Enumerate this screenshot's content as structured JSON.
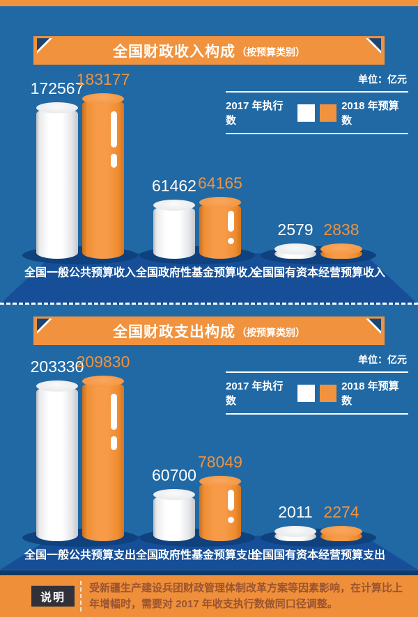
{
  "colors": {
    "background": "#2069a5",
    "floor": "#164f97",
    "shadow": "#0d3f7a",
    "accent_orange": "#f0923e",
    "value_2018_text": "#ee9342",
    "banner_corner_navy": "#1d4570",
    "note_badge_bg": "#31313a",
    "note_text": "#9b5430"
  },
  "sections": [
    {
      "title": "全国财政收入构成",
      "title_suffix": "（按预算类别）",
      "unit": "单位：亿元",
      "legend_left": "2017 年执行数",
      "legend_right": "2018 年预算数",
      "groups": [
        {
          "label": "全国一般公共预算收入",
          "v2017": "172567",
          "v2018": "183177"
        },
        {
          "label": "全国政府性基金预算收入",
          "v2017": "61462",
          "v2018": "64165"
        },
        {
          "label": "全国国有资本经营预算收入",
          "v2017": "2579",
          "v2018": "2838"
        }
      ]
    },
    {
      "title": "全国财政支出构成",
      "title_suffix": "（按预算类别）",
      "unit": "单位：亿元",
      "legend_left": "2017 年执行数",
      "legend_right": "2018 年预算数",
      "groups": [
        {
          "label": "全国一般公共预算支出",
          "v2017": "203330",
          "v2018": "209830"
        },
        {
          "label": "全国政府性基金预算支出",
          "v2017": "60700",
          "v2018": "78049"
        },
        {
          "label": "全国国有资本经营预算支出",
          "v2017": "2011",
          "v2018": "2274"
        }
      ]
    }
  ],
  "note": {
    "badge": "说明",
    "text": "受新疆生产建设兵团财政管理体制改革方案等因素影响，在计算比上年增幅时，需要对 2017 年收支执行数做同口径调整。"
  },
  "chart_data": [
    {
      "type": "bar",
      "title": "全国财政收入构成（按预算类别）",
      "unit": "亿元",
      "categories": [
        "全国一般公共预算收入",
        "全国政府性基金预算收入",
        "全国国有资本经营预算收入"
      ],
      "series": [
        {
          "name": "2017 年执行数",
          "values": [
            172567,
            61462,
            2579
          ]
        },
        {
          "name": "2018 年预算数",
          "values": [
            183177,
            64165,
            2838
          ]
        }
      ],
      "legend_position": "top-right",
      "grid": false
    },
    {
      "type": "bar",
      "title": "全国财政支出构成（按预算类别）",
      "unit": "亿元",
      "categories": [
        "全国一般公共预算支出",
        "全国政府性基金预算支出",
        "全国国有资本经营预算支出"
      ],
      "series": [
        {
          "name": "2017 年执行数",
          "values": [
            203330,
            60700,
            2011
          ]
        },
        {
          "name": "2018 年预算数",
          "values": [
            209830,
            78049,
            2274
          ]
        }
      ],
      "legend_position": "top-right",
      "grid": false
    }
  ]
}
